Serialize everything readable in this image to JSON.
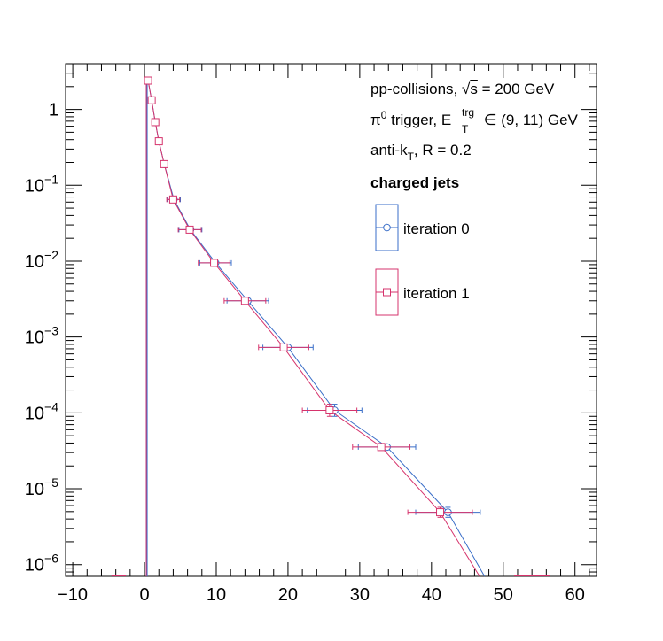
{
  "chart_data": {
    "type": "scatter",
    "title": "",
    "xlabel": "",
    "ylabel": "",
    "x_axis": {
      "range": [
        -11,
        63
      ],
      "scale": "linear",
      "tick_labels": [
        "−10",
        "0",
        "10",
        "20",
        "30",
        "40",
        "50",
        "60"
      ],
      "tick_values": [
        -10,
        0,
        10,
        20,
        30,
        40,
        50,
        60
      ]
    },
    "y_axis": {
      "range": [
        7e-07,
        4
      ],
      "scale": "log",
      "tick_values": [
        1,
        0.1,
        0.01,
        0.001,
        0.0001,
        1e-05,
        1e-06
      ],
      "tick_labels": [
        {
          "base": "1",
          "exp": ""
        },
        {
          "base": "10",
          "exp": "−1"
        },
        {
          "base": "10",
          "exp": "−2"
        },
        {
          "base": "10",
          "exp": "−3"
        },
        {
          "base": "10",
          "exp": "−4"
        },
        {
          "base": "10",
          "exp": "−5"
        },
        {
          "base": "10",
          "exp": "−6"
        }
      ]
    },
    "grid": false,
    "annotations": {
      "line1": {
        "prefix": "pp-collisions, ",
        "sqrt": "√",
        "s": "s",
        "suffix": " = 200 GeV"
      },
      "line2": {
        "pi": "π",
        "pi_sup": "0",
        "mid": " trigger, E",
        "e_sup": "trg",
        "e_sub": "T",
        "suffix": " ∈ (9, 11) GeV"
      },
      "line3": {
        "prefix": "anti-k",
        "sub": "T",
        "suffix": ", R = 0.2"
      },
      "heading": "charged jets"
    },
    "legend": {
      "position": "top-right",
      "entries": [
        "iteration 0",
        "iteration 1"
      ]
    },
    "series": [
      {
        "name": "iteration 0",
        "color": "#3a6ec8",
        "marker": "circle",
        "points": [
          {
            "x": 0.5,
            "y": 2.4,
            "xerr": 0.25
          },
          {
            "x": 1.0,
            "y": 1.32,
            "xerr": 0.25
          },
          {
            "x": 1.5,
            "y": 0.68,
            "xerr": 0.25
          },
          {
            "x": 2.0,
            "y": 0.38,
            "xerr": 0.25
          },
          {
            "x": 2.75,
            "y": 0.19,
            "xerr": 0.5
          },
          {
            "x": 4.1,
            "y": 0.065,
            "xerr": 0.9
          },
          {
            "x": 6.4,
            "y": 0.026,
            "xerr": 1.6
          },
          {
            "x": 9.9,
            "y": 0.0095,
            "xerr": 2.2
          },
          {
            "x": 14.4,
            "y": 0.003,
            "xerr": 2.9
          },
          {
            "x": 20.0,
            "y": 0.00073,
            "xerr": 3.5
          },
          {
            "x": 26.5,
            "y": 0.000108,
            "xerr": 3.8,
            "yerr": [
              9e-05,
              0.00013
            ]
          },
          {
            "x": 33.8,
            "y": 3.55e-05,
            "xerr": 4.0
          },
          {
            "x": 42.3,
            "y": 4.9e-06,
            "xerr": 4.5,
            "yerr": [
              4.2e-06,
              5.7e-06
            ]
          },
          {
            "x": 47.4,
            "y": 7e-07
          }
        ]
      },
      {
        "name": "iteration 1",
        "color": "#d6336c",
        "marker": "square",
        "points": [
          {
            "x": 0.5,
            "y": 2.4,
            "xerr": 0.25
          },
          {
            "x": 1.0,
            "y": 1.32,
            "xerr": 0.25
          },
          {
            "x": 1.5,
            "y": 0.68,
            "xerr": 0.25
          },
          {
            "x": 2.0,
            "y": 0.38,
            "xerr": 0.25
          },
          {
            "x": 2.75,
            "y": 0.19,
            "xerr": 0.5
          },
          {
            "x": 4.0,
            "y": 0.065,
            "xerr": 0.9
          },
          {
            "x": 6.3,
            "y": 0.026,
            "xerr": 1.6
          },
          {
            "x": 9.7,
            "y": 0.0095,
            "xerr": 2.2
          },
          {
            "x": 14.0,
            "y": 0.003,
            "xerr": 2.9
          },
          {
            "x": 19.4,
            "y": 0.00073,
            "xerr": 3.5
          },
          {
            "x": 25.8,
            "y": 0.000108,
            "xerr": 3.8,
            "yerr": [
              9e-05,
              0.00013
            ]
          },
          {
            "x": 33.0,
            "y": 3.55e-05,
            "xerr": 4.0
          },
          {
            "x": 41.2,
            "y": 4.9e-06,
            "xerr": 4.5,
            "yerr": [
              4.2e-06,
              5.7e-06
            ]
          },
          {
            "x": 46.7,
            "y": 7e-07
          }
        ]
      }
    ]
  }
}
